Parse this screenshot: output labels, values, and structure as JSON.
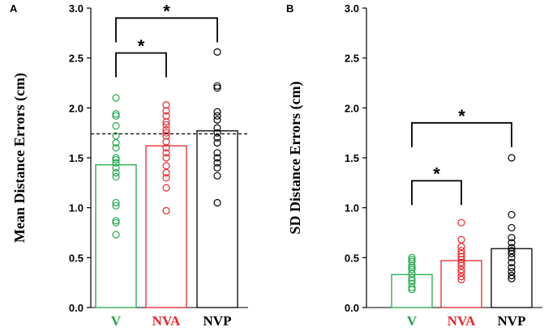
{
  "chart_data": [
    {
      "type": "bar",
      "panel": "A",
      "ylabel": "Mean Distance Errors (cm)",
      "ylim": [
        0,
        3.0
      ],
      "yticks": [
        "0.0",
        "0.5",
        "1.0",
        "1.5",
        "2.0",
        "2.5",
        "3.0"
      ],
      "categories": [
        "V",
        "NVA",
        "NVP"
      ],
      "category_colors": [
        "#22a84a",
        "#e8262a",
        "#000000"
      ],
      "values": [
        1.43,
        1.62,
        1.77
      ],
      "points": [
        [
          2.1,
          1.94,
          1.92,
          1.82,
          1.72,
          1.65,
          1.6,
          1.5,
          1.48,
          1.45,
          1.4,
          1.35,
          1.31,
          1.05,
          1.02,
          0.87,
          0.85,
          0.73
        ],
        [
          2.03,
          1.97,
          1.92,
          1.86,
          1.83,
          1.78,
          1.75,
          1.72,
          1.66,
          1.6,
          1.55,
          1.5,
          1.42,
          1.35,
          1.3,
          1.2,
          0.97
        ],
        [
          2.56,
          2.22,
          2.2,
          1.96,
          1.92,
          1.88,
          1.8,
          1.75,
          1.7,
          1.65,
          1.55,
          1.5,
          1.45,
          1.4,
          1.32,
          1.05
        ]
      ],
      "reference_line": 1.74,
      "significance": [
        {
          "from": "V",
          "to": "NVA",
          "level": 2.55,
          "label": "*"
        },
        {
          "from": "V",
          "to": "NVP",
          "level": 2.9,
          "label": "*"
        }
      ]
    },
    {
      "type": "bar",
      "panel": "B",
      "ylabel": "SD Distance Errors (cm)",
      "ylim": [
        0,
        3.0
      ],
      "yticks": [
        "0.0",
        "0.5",
        "1.0",
        "1.5",
        "2.0",
        "2.5",
        "3.0"
      ],
      "categories": [
        "V",
        "NVA",
        "NVP"
      ],
      "category_colors": [
        "#22a84a",
        "#e8262a",
        "#000000"
      ],
      "values": [
        0.33,
        0.47,
        0.59
      ],
      "points": [
        [
          0.5,
          0.48,
          0.46,
          0.42,
          0.4,
          0.38,
          0.34,
          0.3,
          0.27,
          0.24,
          0.2,
          0.18
        ],
        [
          0.85,
          0.68,
          0.61,
          0.57,
          0.54,
          0.51,
          0.48,
          0.45,
          0.42,
          0.38,
          0.35,
          0.31,
          0.28
        ],
        [
          1.5,
          0.93,
          0.8,
          0.7,
          0.65,
          0.6,
          0.57,
          0.54,
          0.5,
          0.45,
          0.4,
          0.36,
          0.32,
          0.29
        ]
      ],
      "significance": [
        {
          "from": "V",
          "to": "NVA",
          "level": 1.27,
          "label": "*"
        },
        {
          "from": "V",
          "to": "NVP",
          "level": 1.85,
          "label": "*"
        }
      ]
    }
  ]
}
